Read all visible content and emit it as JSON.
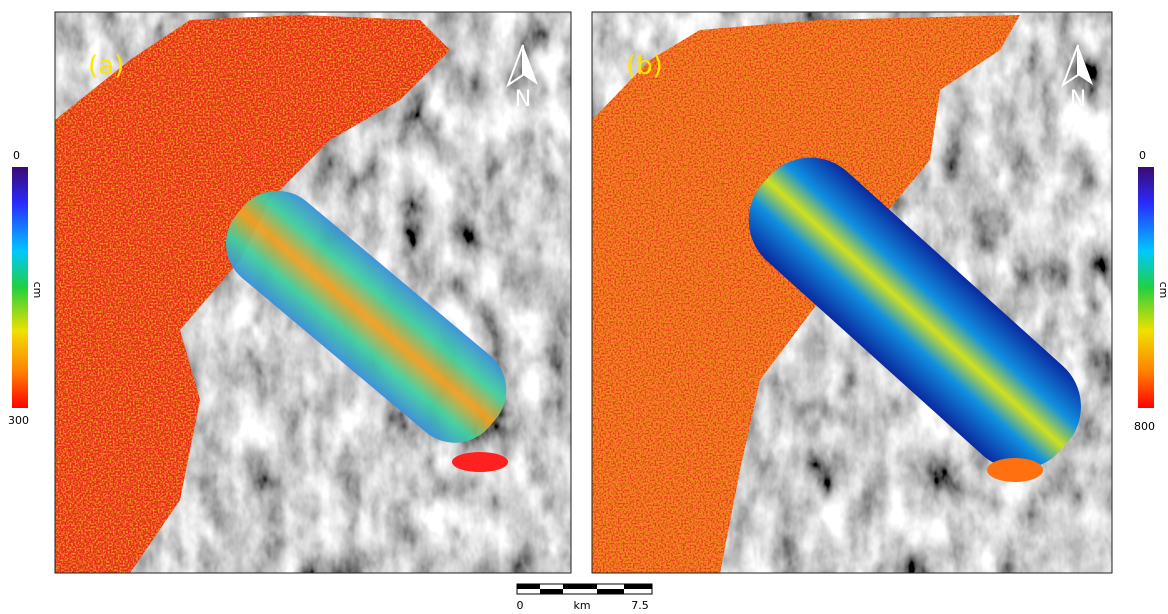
{
  "panels": [
    {
      "label": "(a)",
      "north": "N"
    },
    {
      "label": "(b)",
      "north": "N"
    }
  ],
  "colorbars": [
    {
      "min": "0",
      "max": "300",
      "unit": "cm"
    },
    {
      "min": "0",
      "max": "800",
      "unit": "cm"
    }
  ],
  "scale_bar": {
    "start": "0",
    "unit": "km",
    "end": "7.5"
  }
}
